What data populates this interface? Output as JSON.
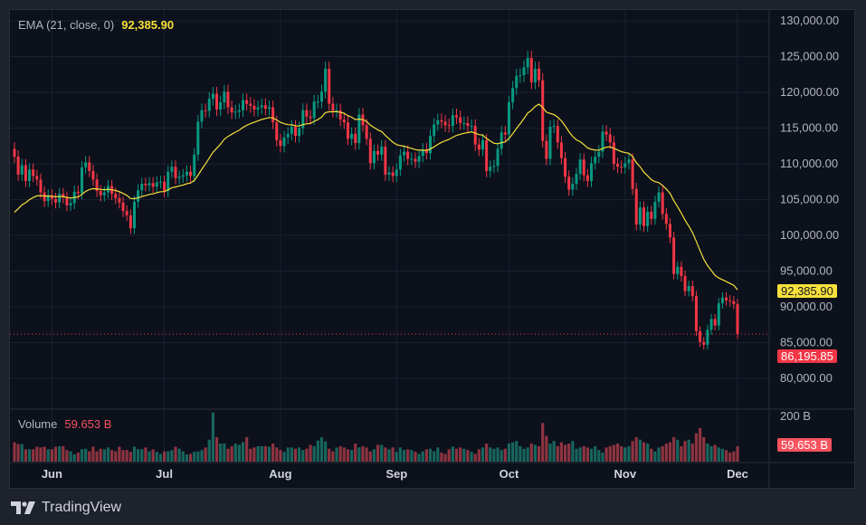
{
  "indicator": {
    "label": "EMA (21, close, 0)",
    "value": "92,385.90",
    "color": "#f7e03a"
  },
  "volume_legend": {
    "label": "Volume",
    "value": "59.653 B"
  },
  "branding": {
    "name": "TradingView"
  },
  "colors": {
    "up": "#089981",
    "down": "#f23645",
    "ema": "#f7e03a",
    "background": "#0c111c",
    "grid": "#1c2130"
  },
  "chart_data": {
    "type": "candlestick",
    "indicator": "EMA 21",
    "ylim": [
      77000,
      131500
    ],
    "y_ticks": [
      130000,
      125000,
      120000,
      115000,
      110000,
      105000,
      100000,
      95000,
      90000,
      85000,
      80000
    ],
    "y_tick_labels": [
      "130,000.00",
      "125,000.00",
      "120,000.00",
      "115,000.00",
      "110,000.00",
      "105,000.00",
      "100,000.00",
      "95,000.00",
      "90,000.00",
      "85,000.00",
      "80,000.00"
    ],
    "volume_tick_label": "200 B",
    "volume_max_b": 200,
    "x_tick_labels": [
      "Jun",
      "Jul",
      "Aug",
      "Sep",
      "Oct",
      "Nov",
      "Dec"
    ],
    "last_price_label": "86,195.85",
    "ema_price_label": "92,385.90",
    "last_volume_label": "59.653 B",
    "grid": true,
    "months": [
      {
        "month": "May",
        "start_day": 22,
        "close": [
          111000,
          108500,
          109800,
          107600,
          109200,
          108300,
          107800,
          106000,
          104800,
          105600
        ],
        "volume_b": [
          75,
          68,
          68,
          48,
          48,
          48,
          58,
          55,
          58,
          48
        ]
      },
      {
        "month": "Jun",
        "start_day": 1,
        "close": [
          105100,
          104600,
          105800,
          105300,
          104200,
          104500,
          106100,
          105900,
          109500,
          110200,
          109000,
          107800,
          106200,
          105600,
          106000,
          106900,
          105800,
          105200,
          104600,
          103400,
          102800,
          101000,
          104700,
          106300,
          107200,
          107000,
          107300,
          106800,
          107400,
          107500
        ],
        "volume_b": [
          48,
          58,
          60,
          60,
          45,
          40,
          28,
          35,
          48,
          50,
          40,
          58,
          40,
          50,
          48,
          55,
          45,
          40,
          58,
          45,
          45,
          38,
          58,
          48,
          48,
          55,
          40,
          48,
          38,
          30
        ]
      },
      {
        "month": "Jul",
        "start_day": 1,
        "close": [
          106200,
          108900,
          109600,
          108000,
          108200,
          108400,
          108900,
          108300,
          111300,
          115900,
          117500,
          117400,
          119100,
          119800,
          117600,
          118600,
          120100,
          117900,
          117200,
          117300,
          117500,
          118900,
          118400,
          118100,
          117600,
          117900,
          118200,
          117700,
          117900,
          115800,
          113300
        ],
        "volume_b": [
          40,
          40,
          45,
          58,
          50,
          40,
          28,
          30,
          38,
          40,
          45,
          55,
          85,
          190,
          95,
          70,
          70,
          50,
          60,
          70,
          65,
          75,
          95,
          50,
          55,
          60,
          60,
          60,
          58,
          70,
          55
        ]
      },
      {
        "month": "Aug",
        "start_day": 1,
        "close": [
          112500,
          113700,
          114200,
          115200,
          113900,
          115000,
          117500,
          116600,
          116400,
          118700,
          118700,
          120100,
          123300,
          118400,
          117400,
          117500,
          116200,
          115800,
          113500,
          114200,
          112900,
          116900,
          115400,
          113500,
          110100,
          111800,
          111300,
          112400,
          108500,
          108800,
          108300
        ],
        "volume_b": [
          45,
          38,
          55,
          55,
          50,
          55,
          45,
          50,
          65,
          60,
          82,
          95,
          78,
          50,
          40,
          55,
          60,
          55,
          48,
          45,
          70,
          55,
          60,
          55,
          40,
          48,
          65,
          65,
          55,
          48,
          55
        ]
      },
      {
        "month": "Sep",
        "start_day": 1,
        "close": [
          109200,
          111200,
          111700,
          110700,
          110700,
          110300,
          111100,
          112000,
          111500,
          113900,
          115500,
          116100,
          115900,
          115400,
          115300,
          116800,
          116500,
          115700,
          115700,
          115300,
          115300,
          112700,
          112000,
          113300,
          109000,
          109600,
          109700,
          112100,
          114400,
          114100
        ],
        "volume_b": [
          38,
          55,
          45,
          48,
          45,
          38,
          30,
          40,
          48,
          50,
          40,
          55,
          35,
          30,
          48,
          58,
          50,
          55,
          50,
          45,
          38,
          30,
          48,
          55,
          70,
          55,
          50,
          55,
          45,
          50
        ]
      },
      {
        "month": "Oct",
        "start_day": 1,
        "close": [
          118600,
          120600,
          122300,
          122400,
          123500,
          124800,
          121400,
          123300,
          121700,
          113200,
          110700,
          115200,
          115300,
          113000,
          110800,
          108200,
          106400,
          107200,
          108600,
          110600,
          108400,
          107600,
          110100,
          111000,
          111700,
          114500,
          114100,
          113000,
          110000,
          109600,
          109500
        ],
        "volume_b": [
          70,
          75,
          80,
          60,
          50,
          55,
          70,
          65,
          60,
          150,
          100,
          70,
          80,
          60,
          75,
          65,
          70,
          80,
          50,
          55,
          60,
          55,
          50,
          60,
          45,
          35,
          55,
          60,
          65,
          70,
          60
        ]
      },
      {
        "month": "Nov",
        "start_day": 1,
        "close": [
          110100,
          110600,
          106500,
          101500,
          103900,
          101300,
          103300,
          102300,
          104700,
          106000,
          103000,
          101600,
          99700,
          94600,
          95600,
          94300,
          92200,
          92900,
          91500,
          86600,
          85100,
          84700,
          86800,
          88300,
          87400,
          90500,
          91300,
          90900,
          90800,
          90400
        ],
        "volume_b": [
          55,
          60,
          80,
          95,
          85,
          75,
          70,
          50,
          40,
          55,
          60,
          70,
          75,
          95,
          85,
          60,
          80,
          85,
          70,
          110,
          130,
          95,
          70,
          60,
          65,
          55,
          50,
          45,
          35,
          40
        ]
      },
      {
        "month": "Dec",
        "start_day": 1,
        "close": [
          86195.85
        ],
        "volume_b": [
          59.653
        ]
      }
    ]
  }
}
